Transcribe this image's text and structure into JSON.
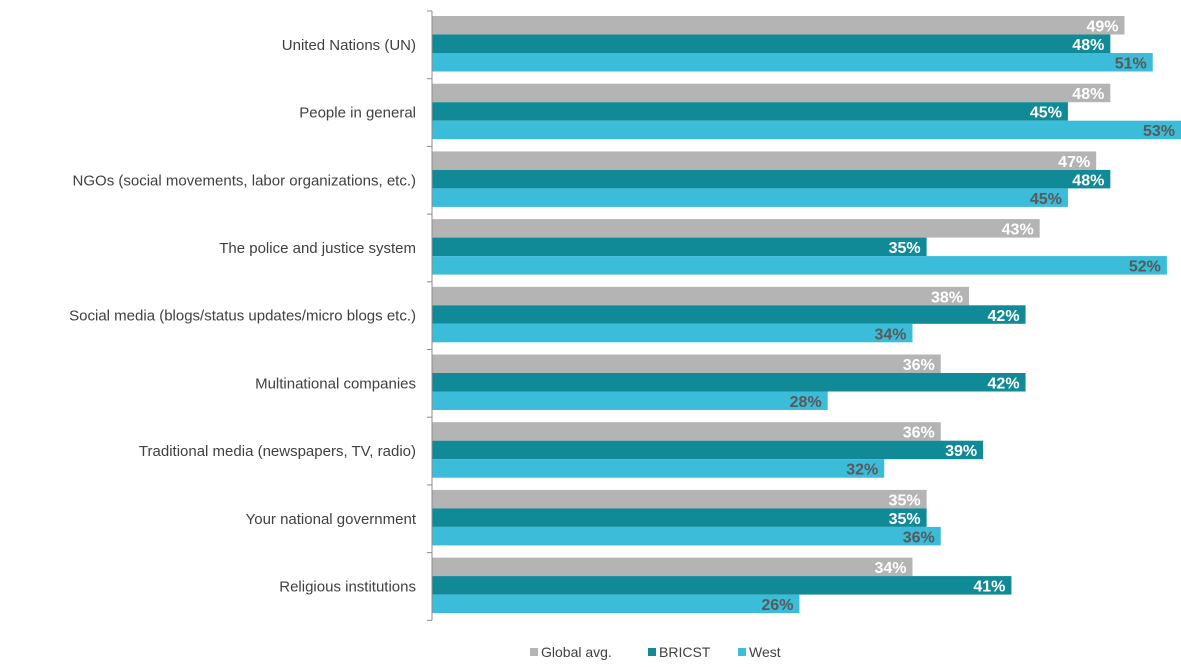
{
  "chart_data": {
    "type": "bar",
    "orientation": "horizontal",
    "categories": [
      "United Nations (UN)",
      "People in general",
      "NGOs (social movements, labor organizations, etc.)",
      "The police and justice system",
      "Social media (blogs/status updates/micro blogs etc.)",
      "Multinational companies",
      "Traditional media (newspapers, TV, radio)",
      "Your national government",
      "Religious institutions"
    ],
    "series": [
      {
        "name": "Global avg.",
        "color": "#b4b4b4",
        "label_color": "#ffffff",
        "values": [
          49,
          48,
          47,
          43,
          38,
          36,
          36,
          35,
          34
        ]
      },
      {
        "name": "BRICST",
        "color": "#108a96",
        "label_color": "#ffffff",
        "values": [
          48,
          45,
          48,
          35,
          42,
          42,
          39,
          35,
          41
        ]
      },
      {
        "name": "West",
        "color": "#3bbcd8",
        "label_color": "#595959",
        "values": [
          51,
          53,
          45,
          52,
          34,
          28,
          32,
          36,
          26
        ]
      }
    ],
    "value_suffix": "%",
    "xlim": [
      0,
      53
    ],
    "grid": false,
    "legend_position": "bottom-center",
    "title": "",
    "xlabel": "",
    "ylabel": ""
  }
}
